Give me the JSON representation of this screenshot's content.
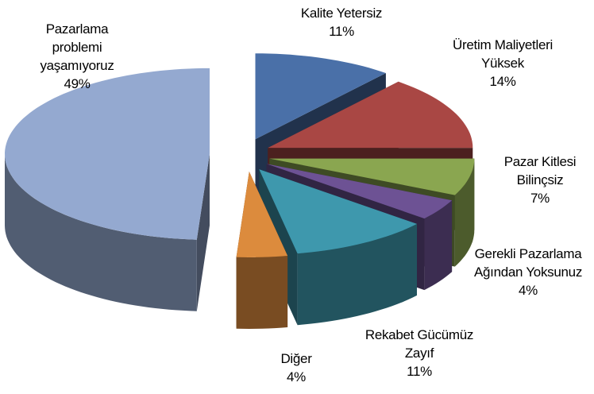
{
  "chart_data": {
    "type": "pie3d",
    "categories": [
      "Kalite Yetersiz",
      "Üretim Maliyetleri Yüksek",
      "Pazar Kitlesi Bilinçsiz",
      "Gerekli Pazarlama Ağından Yoksunuz",
      "Rekabet Gücümüz Zayıf",
      "Diğer",
      "Pazarlama problemi yaşamıyoruz"
    ],
    "values": [
      11,
      14,
      7,
      4,
      11,
      4,
      49
    ],
    "value_labels": [
      "11%",
      "14%",
      "7%",
      "4%",
      "11%",
      "4%",
      "49%"
    ],
    "colors": [
      "#4a70a8",
      "#a94744",
      "#8aa650",
      "#6d5294",
      "#3e98ad",
      "#dc8b3d",
      "#94a9d0"
    ]
  }
}
